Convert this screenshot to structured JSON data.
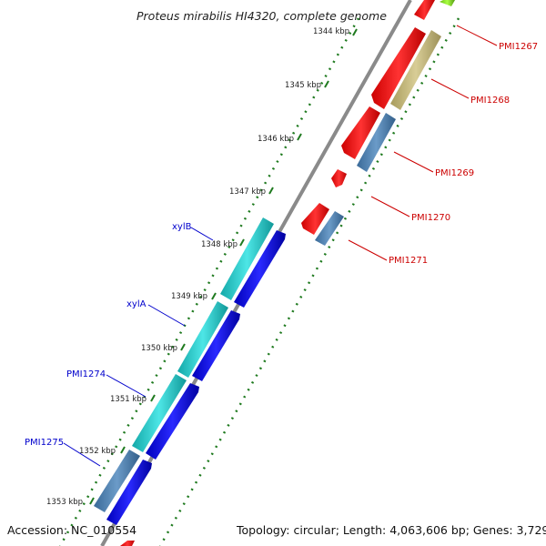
{
  "title": "Proteus mirabilis HI4320, complete genome",
  "footer": {
    "accession": "Accession: NC_010554",
    "summary": "Topology: circular; Length: 4,063,606 bp; Genes: 3,729"
  },
  "ticks": [
    "1344 kbp",
    "1345 kbp",
    "1346 kbp",
    "1347 kbp",
    "1348 kbp",
    "1349 kbp",
    "1350 kbp",
    "1351 kbp",
    "1352 kbp",
    "1353 kbp"
  ],
  "genes_right": [
    "PMI1267",
    "PMI1268",
    "PMI1269",
    "PMI1270",
    "PMI1271"
  ],
  "genes_left": [
    "xylB",
    "xylA",
    "PMI1274",
    "PMI1275"
  ],
  "colors": {
    "backbone": "#808080",
    "gc_dots": "#1f7a1f",
    "cds_forward": "#0000ee",
    "cds_reverse": "#ff0000",
    "feature_cyan": "#1fc7c7",
    "feature_steelblue": "#4a7fb0",
    "feature_khaki": "#c4b878",
    "feature_green": "#88dd22",
    "label_forward": "#0000cc",
    "label_reverse": "#cc0000"
  }
}
